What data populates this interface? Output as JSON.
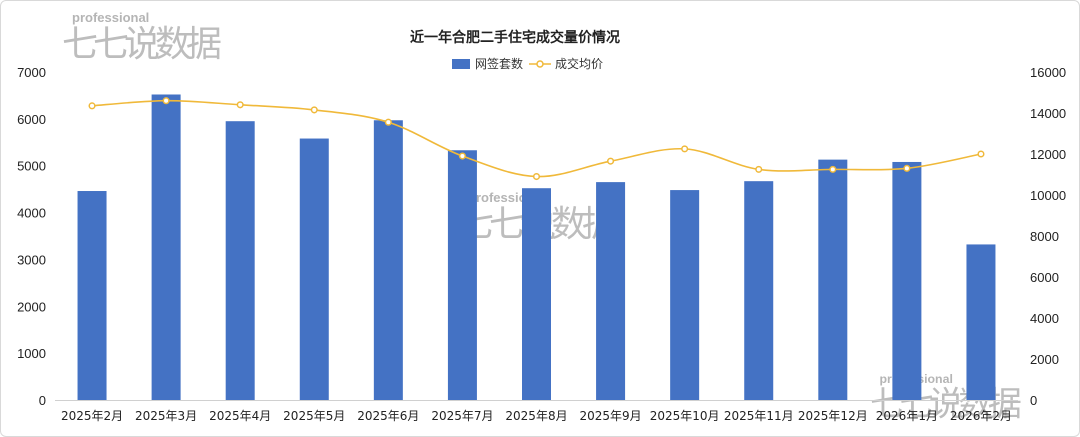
{
  "chart_data": {
    "type": "bar+line",
    "title": "近一年合肥二手住宅成交量价情况",
    "categories": [
      "2025年2月",
      "2025年3月",
      "2025年4月",
      "2025年5月",
      "2025年6月",
      "2025年7月",
      "2025年8月",
      "2025年9月",
      "2025年10月",
      "2025年11月",
      "2025年12月",
      "2026年1月",
      "2026年2月"
    ],
    "series": [
      {
        "name": "网签套数",
        "type": "bar",
        "axis": "left",
        "color": "#4472c4",
        "values": [
          4460,
          6520,
          5950,
          5580,
          5970,
          5330,
          4520,
          4650,
          4480,
          4670,
          5130,
          5080,
          3320
        ]
      },
      {
        "name": "成交均价",
        "type": "line",
        "axis": "right",
        "color": "#f0b93a",
        "values": [
          14350,
          14600,
          14400,
          14150,
          13550,
          11900,
          10900,
          11650,
          12250,
          11250,
          11250,
          11300,
          12000
        ]
      }
    ],
    "y_left": {
      "min": 0,
      "max": 7000,
      "ticks": [
        0,
        1000,
        2000,
        3000,
        4000,
        5000,
        6000,
        7000
      ]
    },
    "y_right": {
      "min": 0,
      "max": 16000,
      "ticks": [
        0,
        2000,
        4000,
        6000,
        8000,
        10000,
        12000,
        14000,
        16000
      ]
    },
    "legend_position": "top-center",
    "grid": false
  },
  "watermark": {
    "en": "professional",
    "cn": "七七说数据"
  }
}
